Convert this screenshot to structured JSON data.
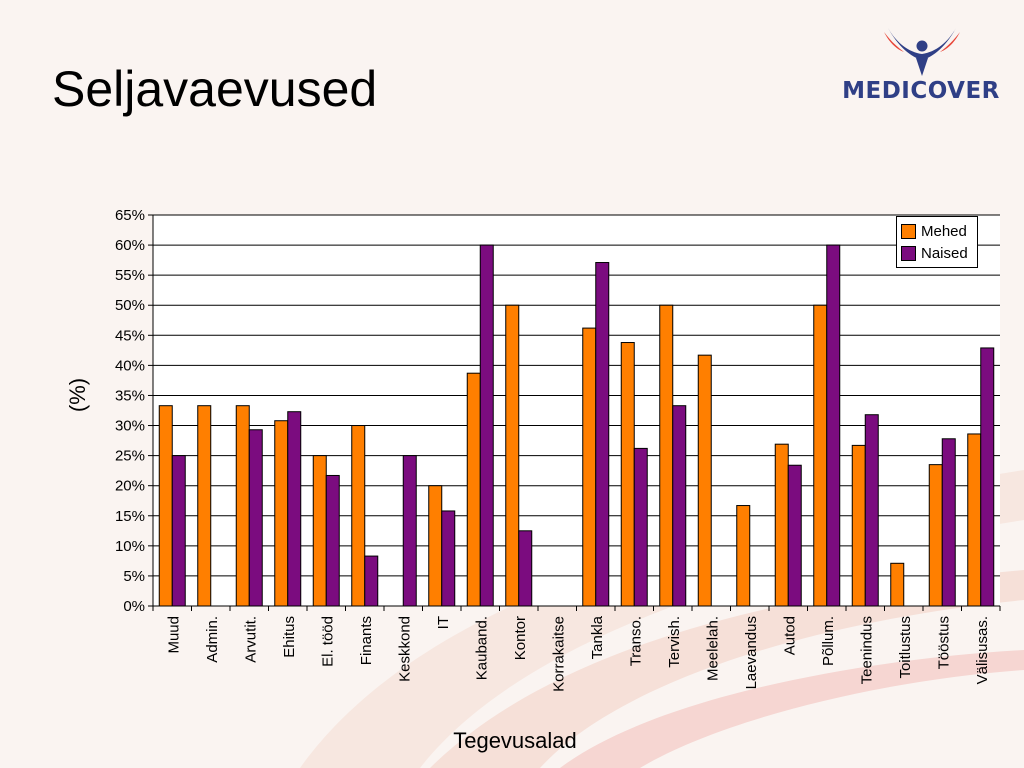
{
  "title": "Seljavaevused",
  "logo": {
    "text": "MEDICOVER"
  },
  "colors": {
    "mehed": "#ff7f00",
    "naised": "#7b0c7f",
    "brand": "#2f3f86",
    "grid": "#000000"
  },
  "chart_data": {
    "type": "bar",
    "xlabel": "Tegevusalad",
    "ylabel": "(%)",
    "ylim": [
      0,
      65
    ],
    "yticks": [
      "0%",
      "5%",
      "10%",
      "15%",
      "20%",
      "25%",
      "30%",
      "35%",
      "40%",
      "45%",
      "50%",
      "55%",
      "60%",
      "65%"
    ],
    "grid": true,
    "legend_position": "top-right",
    "categories": [
      "Muud",
      "Admin.",
      "Arvutit.",
      "Ehitus",
      "El. tööd",
      "Finants",
      "Keskkond",
      "IT",
      "Kauband.",
      "Kontor",
      "Korrakaitse",
      "Tankla",
      "Transo.",
      "Tervish.",
      "Meelelah.",
      "Laevandus",
      "Autod",
      "Põllum.",
      "Teenindus",
      "Toitlustus",
      "Tööstus",
      "Välisusas."
    ],
    "series": [
      {
        "name": "Mehed",
        "values": [
          33.3,
          33.3,
          33.3,
          30.8,
          25,
          30,
          0,
          20,
          38.7,
          50,
          0,
          46.2,
          43.8,
          50,
          41.7,
          16.7,
          26.9,
          50,
          26.7,
          7.1,
          23.5,
          28.6
        ]
      },
      {
        "name": "Naised",
        "values": [
          25,
          0,
          29.3,
          32.3,
          21.7,
          8.3,
          25,
          15.8,
          60,
          12.5,
          0,
          57.1,
          26.2,
          33.3,
          0,
          0,
          23.4,
          60,
          31.8,
          0,
          27.8,
          42.9
        ]
      }
    ]
  }
}
